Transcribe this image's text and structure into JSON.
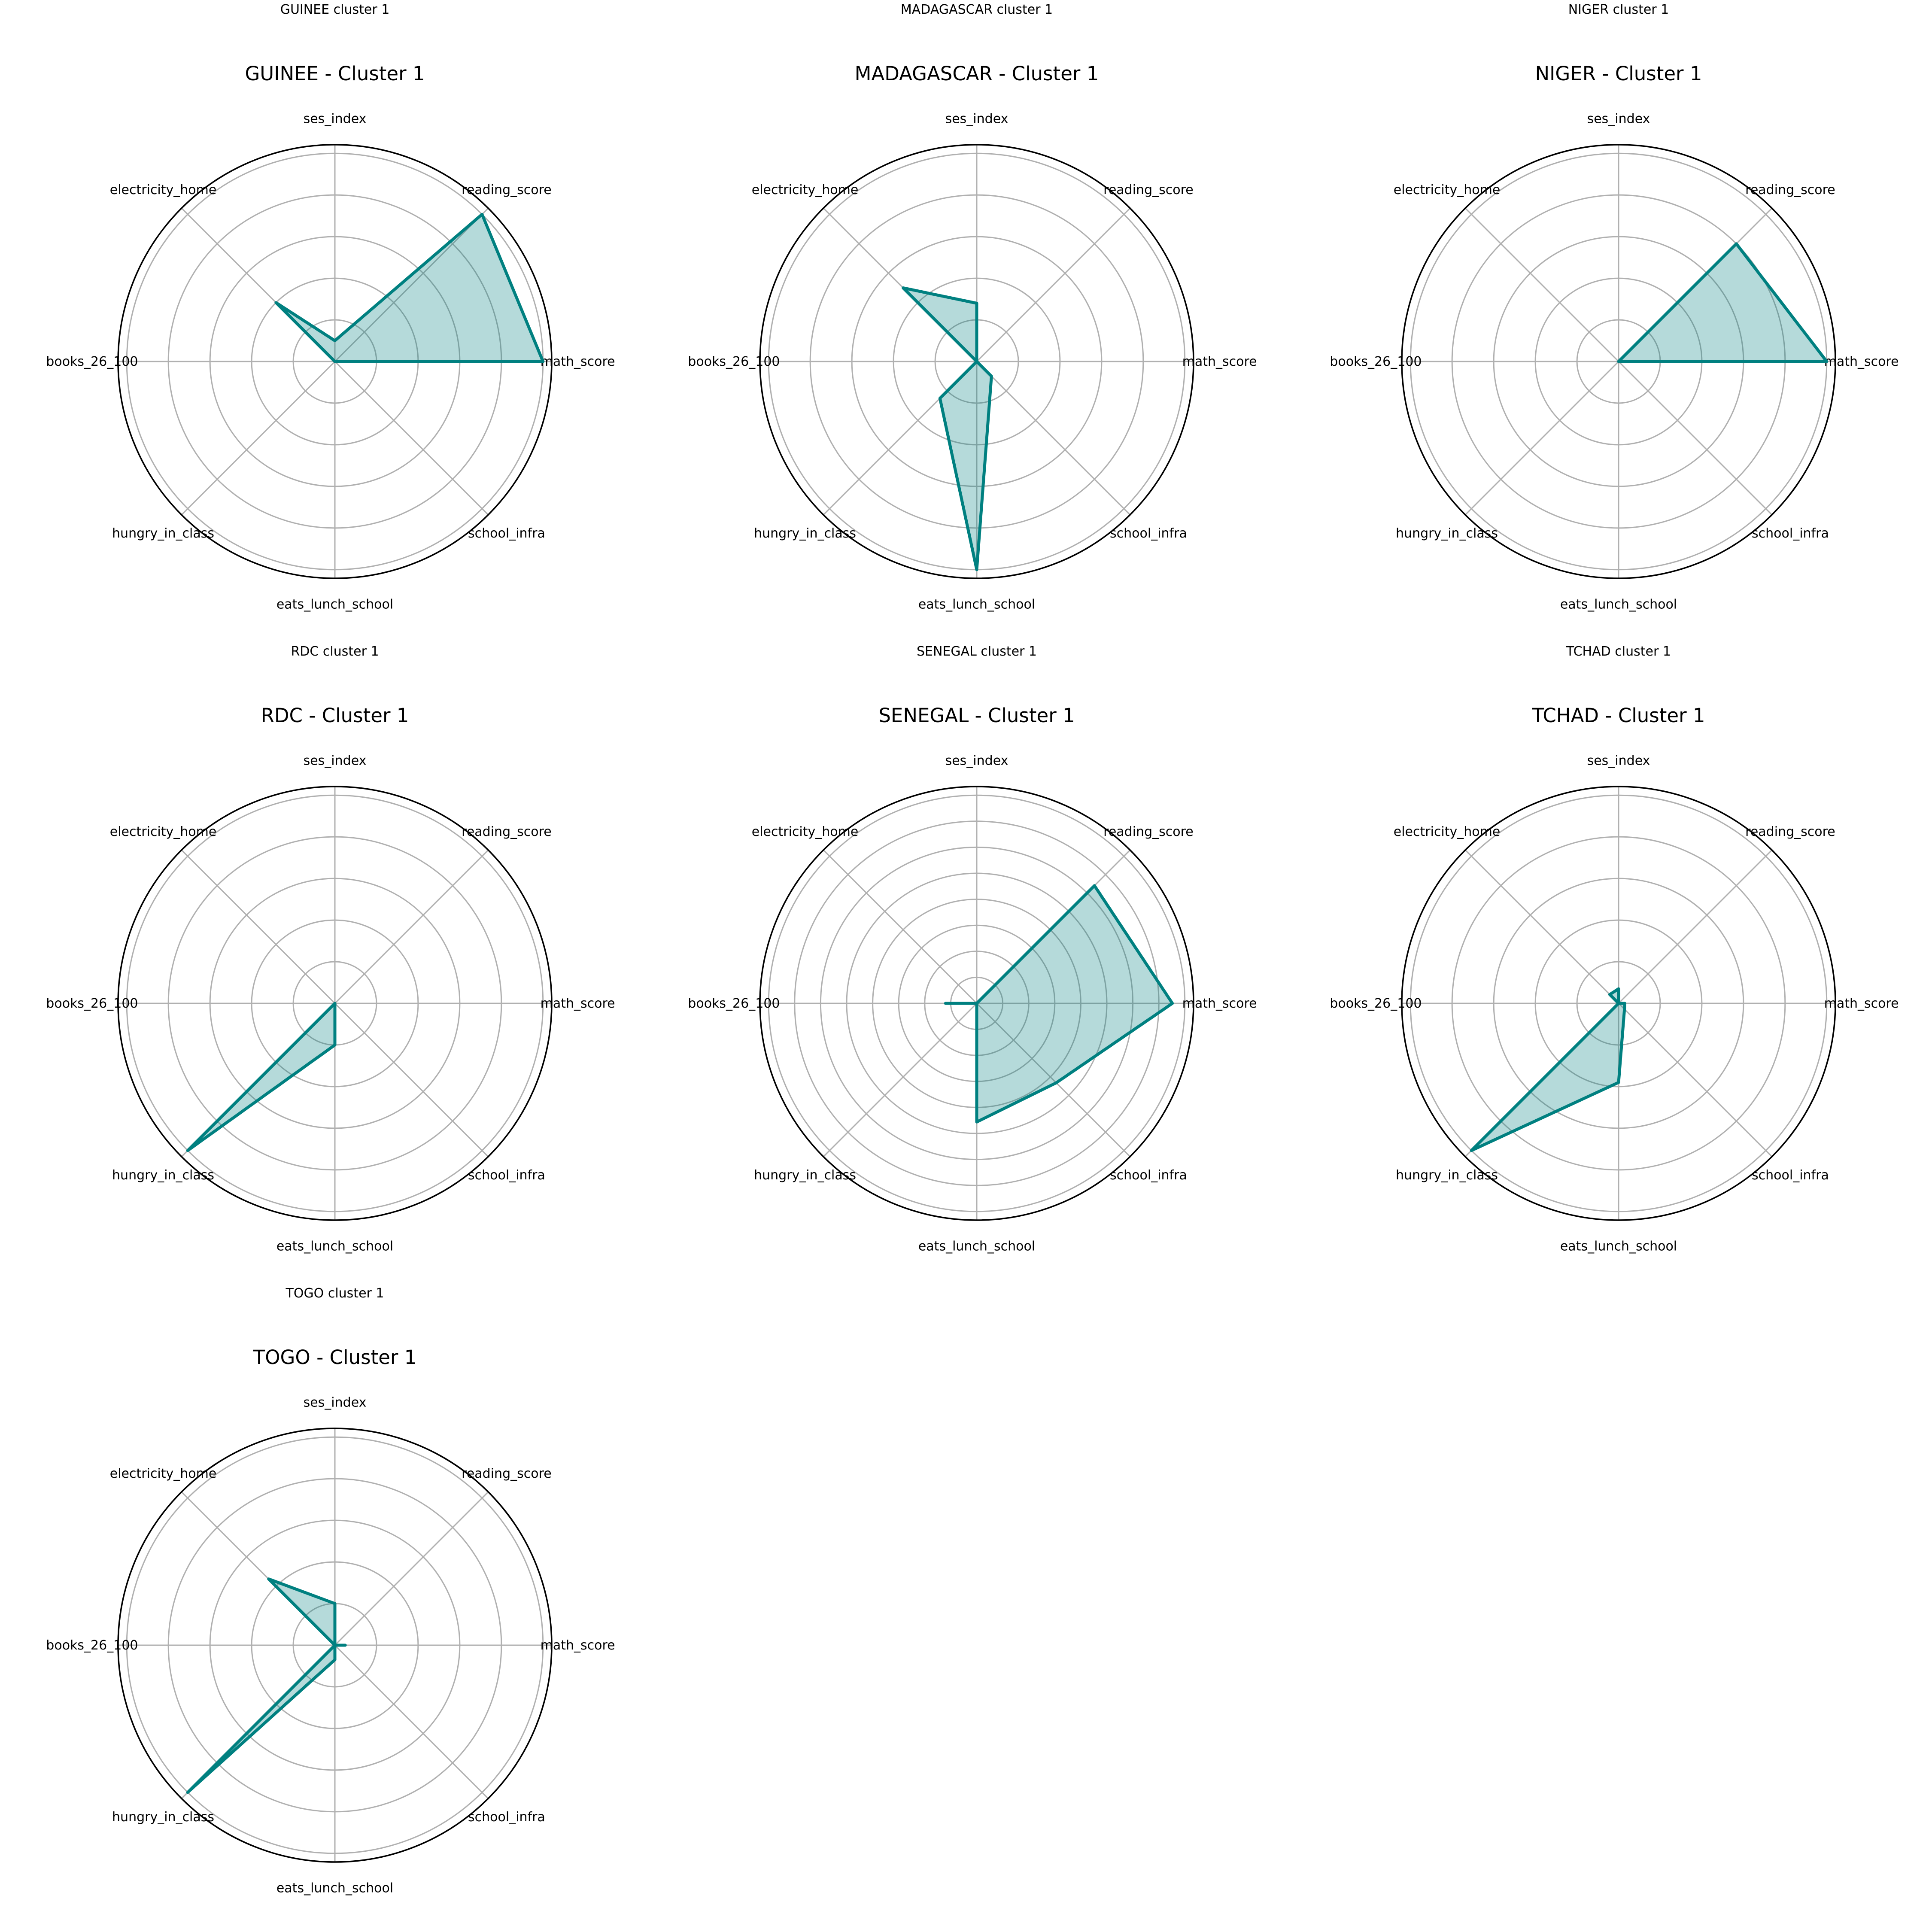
{
  "figure": {
    "line_color": "#008080",
    "fill_color": "#008080"
  },
  "chart_data": [
    {
      "type": "radar",
      "suptitle": "GUINEE cluster 1",
      "title": "GUINEE - Cluster 1",
      "axes": [
        "math_score",
        "reading_score",
        "ses_index",
        "electricity_home",
        "books_26_100",
        "hungry_in_class",
        "eats_lunch_school",
        "school_infra"
      ],
      "values": [
        1.0,
        1.0,
        0.1,
        0.4,
        0.0,
        0.0,
        0.0,
        0.0
      ],
      "rmax": 1.0,
      "rings": 5
    },
    {
      "type": "radar",
      "suptitle": "MADAGASCAR cluster 1",
      "title": "MADAGASCAR - Cluster 1",
      "axes": [
        "math_score",
        "reading_score",
        "ses_index",
        "electricity_home",
        "books_26_100",
        "hungry_in_class",
        "eats_lunch_school",
        "school_infra"
      ],
      "values": [
        0.0,
        0.0,
        0.28,
        0.5,
        0.0,
        0.25,
        1.0,
        0.1
      ],
      "rmax": 1.0,
      "rings": 5
    },
    {
      "type": "radar",
      "suptitle": "NIGER cluster 1",
      "title": "NIGER - Cluster 1",
      "axes": [
        "math_score",
        "reading_score",
        "ses_index",
        "electricity_home",
        "books_26_100",
        "hungry_in_class",
        "eats_lunch_school",
        "school_infra"
      ],
      "values": [
        1.0,
        0.8,
        0.0,
        0.0,
        0.0,
        0.0,
        0.0,
        0.0
      ],
      "rmax": 1.0,
      "rings": 5
    },
    {
      "type": "radar",
      "suptitle": "RDC cluster 1",
      "title": "RDC - Cluster 1",
      "axes": [
        "math_score",
        "reading_score",
        "ses_index",
        "electricity_home",
        "books_26_100",
        "hungry_in_class",
        "eats_lunch_school",
        "school_infra"
      ],
      "values": [
        0.0,
        0.0,
        0.0,
        0.0,
        0.0,
        1.0,
        0.2,
        0.0
      ],
      "rmax": 1.0,
      "rings": 5
    },
    {
      "type": "radar",
      "suptitle": "SENEGAL cluster 1",
      "title": "SENEGAL - Cluster 1",
      "axes": [
        "math_score",
        "reading_score",
        "ses_index",
        "electricity_home",
        "books_26_100",
        "hungry_in_class",
        "eats_lunch_school",
        "school_infra"
      ],
      "values": [
        0.94,
        0.8,
        0.0,
        0.0,
        0.15,
        0.0,
        0.57,
        0.54
      ],
      "rmax": 1.0,
      "rings": 8
    },
    {
      "type": "radar",
      "suptitle": "TCHAD cluster 1",
      "title": "TCHAD - Cluster 1",
      "axes": [
        "math_score",
        "reading_score",
        "ses_index",
        "electricity_home",
        "books_26_100",
        "hungry_in_class",
        "eats_lunch_school",
        "school_infra"
      ],
      "values": [
        0.03,
        0.0,
        0.07,
        0.06,
        0.0,
        1.0,
        0.38,
        0.04
      ],
      "rmax": 1.0,
      "rings": 5
    },
    {
      "type": "radar",
      "suptitle": "TOGO cluster 1",
      "title": "TOGO - Cluster 1",
      "axes": [
        "math_score",
        "reading_score",
        "ses_index",
        "electricity_home",
        "books_26_100",
        "hungry_in_class",
        "eats_lunch_school",
        "school_infra"
      ],
      "values": [
        0.05,
        0.0,
        0.2,
        0.45,
        0.0,
        1.0,
        0.07,
        0.0
      ],
      "rmax": 1.0,
      "rings": 5
    }
  ]
}
